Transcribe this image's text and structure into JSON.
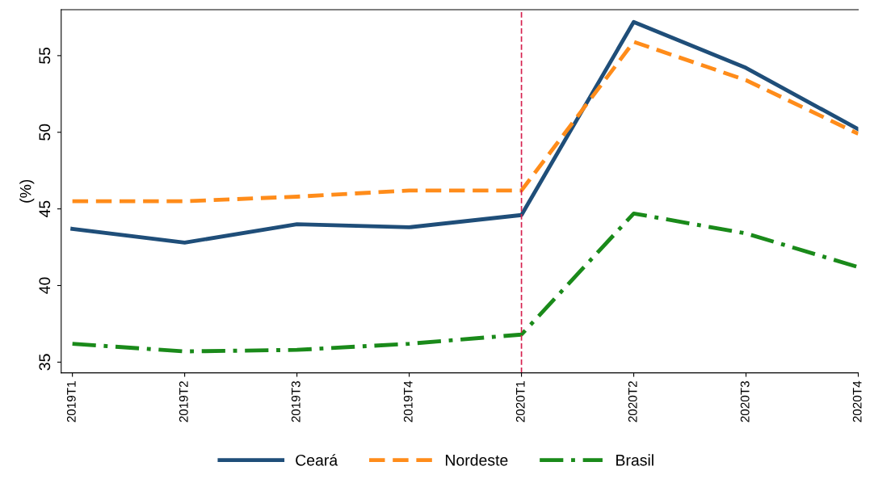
{
  "chart_data": {
    "type": "line",
    "ylabel": "(%)",
    "categories": [
      "2019T1",
      "2019T2",
      "2019T3",
      "2019T4",
      "2020T1",
      "2020T2",
      "2020T3",
      "2020T4"
    ],
    "series": [
      {
        "name": "Ceará",
        "color": "#1f4e79",
        "line_style": "solid",
        "values": [
          43.7,
          42.8,
          44.0,
          43.8,
          44.6,
          57.2,
          54.2,
          50.2
        ]
      },
      {
        "name": "Nordeste",
        "color": "#ff8c1a",
        "line_style": "dashed",
        "values": [
          45.5,
          45.5,
          45.8,
          46.2,
          46.2,
          55.9,
          53.4,
          49.9
        ]
      },
      {
        "name": "Brasil",
        "color": "#1a8a1a",
        "line_style": "dashdot",
        "values": [
          36.2,
          35.7,
          35.8,
          36.2,
          36.8,
          44.7,
          43.4,
          41.2
        ]
      }
    ],
    "ylim": [
      34.3,
      58
    ],
    "yticks": [
      35,
      40,
      45,
      50,
      55
    ],
    "grid": false,
    "legend": "bottom",
    "marker": "none",
    "ref_lines": [
      {
        "axis": "x",
        "value": "2020T1",
        "color": "#d6204e",
        "line_style": "dashed"
      }
    ]
  }
}
